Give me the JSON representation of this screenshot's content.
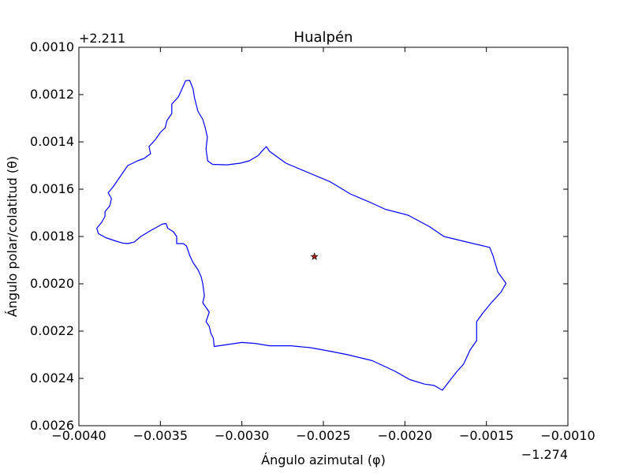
{
  "chart_data": {
    "type": "line",
    "title": "Hualpén",
    "xlabel": "Ángulo azimutal (φ)",
    "ylabel": "Ángulo polar/colatitud (θ)",
    "x_offset_label": "−1.274",
    "y_offset_label": "+2.211",
    "xlim": [
      -0.004,
      -0.001
    ],
    "ylim": [
      0.0026,
      0.001
    ],
    "y_inverted": true,
    "xticks": [
      -0.004,
      -0.0035,
      -0.003,
      -0.0025,
      -0.002,
      -0.0015,
      -0.001
    ],
    "xtick_labels": [
      "−0.0040",
      "−0.0035",
      "−0.0030",
      "−0.0025",
      "−0.0020",
      "−0.0015",
      "−0.0010"
    ],
    "yticks": [
      0.001,
      0.0012,
      0.0014,
      0.0016,
      0.0018,
      0.002,
      0.0022,
      0.0024,
      0.0026
    ],
    "ytick_labels": [
      "0.0010",
      "0.0012",
      "0.0014",
      "0.0016",
      "0.0018",
      "0.0020",
      "0.0022",
      "0.0024",
      "0.0026"
    ],
    "grid": false,
    "series": [
      {
        "color": "#0000ff",
        "points": [
          [
            -0.003345,
            0.001141
          ],
          [
            -0.00332,
            0.00114
          ],
          [
            -0.0033,
            0.001175
          ],
          [
            -0.00329,
            0.001215
          ],
          [
            -0.00327,
            0.00127
          ],
          [
            -0.00324,
            0.001305
          ],
          [
            -0.003225,
            0.00134
          ],
          [
            -0.003212,
            0.00138
          ],
          [
            -0.00322,
            0.00143
          ],
          [
            -0.00321,
            0.00148
          ],
          [
            -0.00318,
            0.001495
          ],
          [
            -0.00309,
            0.001497
          ],
          [
            -0.00301,
            0.00149
          ],
          [
            -0.002955,
            0.00148
          ],
          [
            -0.0029,
            0.001458
          ],
          [
            -0.00287,
            0.001434
          ],
          [
            -0.00285,
            0.00142
          ],
          [
            -0.00283,
            0.00144
          ],
          [
            -0.00273,
            0.00149
          ],
          [
            -0.00261,
            0.001525
          ],
          [
            -0.00246,
            0.001568
          ],
          [
            -0.002335,
            0.00162
          ],
          [
            -0.002215,
            0.001655
          ],
          [
            -0.00212,
            0.001685
          ],
          [
            -0.00198,
            0.00171
          ],
          [
            -0.00185,
            0.001758
          ],
          [
            -0.00176,
            0.0018
          ],
          [
            -0.00161,
            0.001825
          ],
          [
            -0.00148,
            0.001846
          ],
          [
            -0.00146,
            0.00188
          ],
          [
            -0.00143,
            0.00195
          ],
          [
            -0.00138,
            0.001998
          ],
          [
            -0.00141,
            0.002035
          ],
          [
            -0.00147,
            0.00208
          ],
          [
            -0.00152,
            0.002122
          ],
          [
            -0.00156,
            0.00216
          ],
          [
            -0.00156,
            0.00224
          ],
          [
            -0.0016,
            0.00228
          ],
          [
            -0.00164,
            0.00234
          ],
          [
            -0.00168,
            0.00237
          ],
          [
            -0.00172,
            0.002405
          ],
          [
            -0.00177,
            0.00245
          ],
          [
            -0.00182,
            0.00243
          ],
          [
            -0.00188,
            0.002424
          ],
          [
            -0.00197,
            0.002405
          ],
          [
            -0.00206,
            0.00237
          ],
          [
            -0.0022,
            0.002325
          ],
          [
            -0.00235,
            0.0023
          ],
          [
            -0.00246,
            0.002285
          ],
          [
            -0.00258,
            0.00227
          ],
          [
            -0.0027,
            0.002262
          ],
          [
            -0.00283,
            0.002262
          ],
          [
            -0.00292,
            0.002252
          ],
          [
            -0.003,
            0.002248
          ],
          [
            -0.00312,
            0.00226
          ],
          [
            -0.00317,
            0.002265
          ],
          [
            -0.003175,
            0.00223
          ],
          [
            -0.00319,
            0.00221
          ],
          [
            -0.0032,
            0.00218
          ],
          [
            -0.00322,
            0.00216
          ],
          [
            -0.0032,
            0.00212
          ],
          [
            -0.00324,
            0.00208
          ],
          [
            -0.00323,
            0.00205
          ],
          [
            -0.00324,
            0.002
          ],
          [
            -0.00325,
            0.00197
          ],
          [
            -0.00327,
            0.00194
          ],
          [
            -0.0033,
            0.00191
          ],
          [
            -0.00332,
            0.00188
          ],
          [
            -0.00333,
            0.00186
          ],
          [
            -0.00334,
            0.00184
          ],
          [
            -0.00336,
            0.00183
          ],
          [
            -0.0034,
            0.00183
          ],
          [
            -0.0034,
            0.0018
          ],
          [
            -0.00342,
            0.00178
          ],
          [
            -0.003455,
            0.001765
          ],
          [
            -0.003465,
            0.001745
          ],
          [
            -0.00349,
            0.001748
          ],
          [
            -0.00352,
            0.00176
          ],
          [
            -0.00356,
            0.001775
          ],
          [
            -0.00362,
            0.0018
          ],
          [
            -0.00366,
            0.001823
          ],
          [
            -0.0037,
            0.00183
          ],
          [
            -0.00373,
            0.001828
          ],
          [
            -0.00377,
            0.00182
          ],
          [
            -0.003835,
            0.001805
          ],
          [
            -0.00388,
            0.001788
          ],
          [
            -0.00389,
            0.001765
          ],
          [
            -0.00386,
            0.00174
          ],
          [
            -0.00384,
            0.001715
          ],
          [
            -0.00384,
            0.001695
          ],
          [
            -0.00381,
            0.00167
          ],
          [
            -0.0038,
            0.00164
          ],
          [
            -0.00382,
            0.001615
          ],
          [
            -0.00379,
            0.00159
          ],
          [
            -0.00376,
            0.00156
          ],
          [
            -0.00373,
            0.00153
          ],
          [
            -0.0037,
            0.0015
          ],
          [
            -0.00367,
            0.00149
          ],
          [
            -0.00364,
            0.00148
          ],
          [
            -0.0036,
            0.00147
          ],
          [
            -0.00356,
            0.00145
          ],
          [
            -0.00357,
            0.00142
          ],
          [
            -0.00353,
            0.00139
          ],
          [
            -0.0035,
            0.00136
          ],
          [
            -0.00347,
            0.00134
          ],
          [
            -0.00346,
            0.00131
          ],
          [
            -0.00343,
            0.00128
          ],
          [
            -0.00343,
            0.00124
          ],
          [
            -0.00339,
            0.00121
          ],
          [
            -0.00337,
            0.00118
          ],
          [
            -0.003345,
            0.001141
          ]
        ]
      }
    ],
    "marker": {
      "x": -0.002555,
      "y": 0.001885,
      "symbol": "star",
      "color": "#b22222"
    }
  }
}
